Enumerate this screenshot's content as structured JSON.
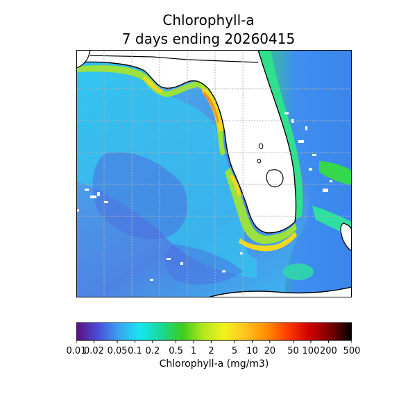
{
  "title": {
    "line1": "Chlorophyll-a",
    "line2": "7 days ending 20260415"
  },
  "colorbar": {
    "label": "Chlorophyll-a (mg/m3)",
    "ticks": [
      "0.01",
      "0.02",
      "0.05",
      "0.1",
      "0.2",
      "0.5",
      "1",
      "2",
      "5",
      "10",
      "20",
      "50",
      "100",
      "200",
      "500"
    ],
    "tick_values": [
      0.01,
      0.02,
      0.05,
      0.1,
      0.2,
      0.5,
      1,
      2,
      5,
      10,
      20,
      50,
      100,
      200,
      500
    ],
    "range": [
      0.01,
      500
    ],
    "scale": "log",
    "colors": [
      "#5a0f7a",
      "#4b4bd8",
      "#3aa3f0",
      "#18e6f0",
      "#19d89a",
      "#3ccc1e",
      "#b4e81e",
      "#f2f21e",
      "#ffc21e",
      "#ff8c00",
      "#ff3a00",
      "#d00000",
      "#7a0000",
      "#000000"
    ]
  },
  "map": {
    "colors": {
      "land": "#ffffff",
      "coastline": "#000000",
      "gulf_offshore": "#4f8de8",
      "gulf_shelf": "#2ec8f2",
      "coastal_high": "#9be23c",
      "nearshore_peak": "#f4d81e",
      "gulf_stream": "#3f8ef0"
    },
    "gridlines": "dotted"
  }
}
